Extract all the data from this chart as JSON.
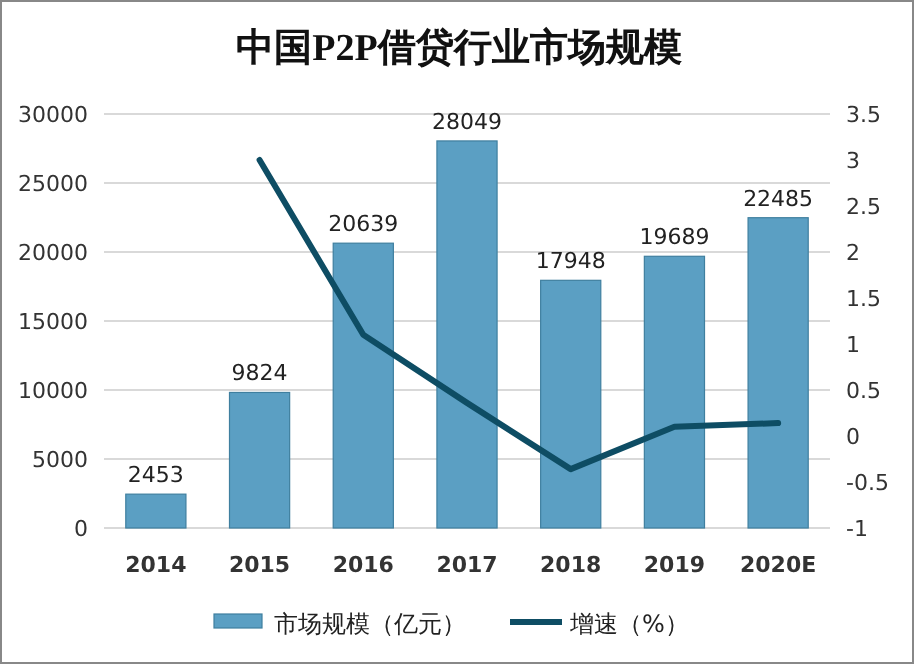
{
  "chart_data": {
    "type": "bar",
    "title": "中国P2P借贷行业市场规模",
    "categories": [
      "2014",
      "2015",
      "2016",
      "2017",
      "2018",
      "2019",
      "2020E"
    ],
    "series": [
      {
        "name": "市场规模（亿元）",
        "color": "#5b9fc3",
        "values": [
          2453,
          9824,
          20639,
          28049,
          17948,
          19689,
          22485
        ],
        "value_labels": [
          "2453",
          "9824",
          "20639",
          "28049",
          "17948",
          "19689",
          "22485"
        ]
      },
      {
        "name": "增速（%）",
        "type": "line",
        "axis": "y2",
        "color": "#0e4d64",
        "values": [
          null,
          3.0,
          1.1,
          0.36,
          -0.36,
          0.1,
          0.14
        ]
      }
    ],
    "ylim": [
      0,
      30000
    ],
    "yticks": [
      0,
      5000,
      10000,
      15000,
      20000,
      25000,
      30000
    ],
    "y2lim": [
      -1,
      3.5
    ],
    "y2ticks": [
      -1,
      -0.5,
      0,
      0.5,
      1,
      1.5,
      2,
      2.5,
      3,
      3.5
    ],
    "grid": "y",
    "legend": "bottom",
    "marker": "none",
    "line_style": "solid"
  }
}
